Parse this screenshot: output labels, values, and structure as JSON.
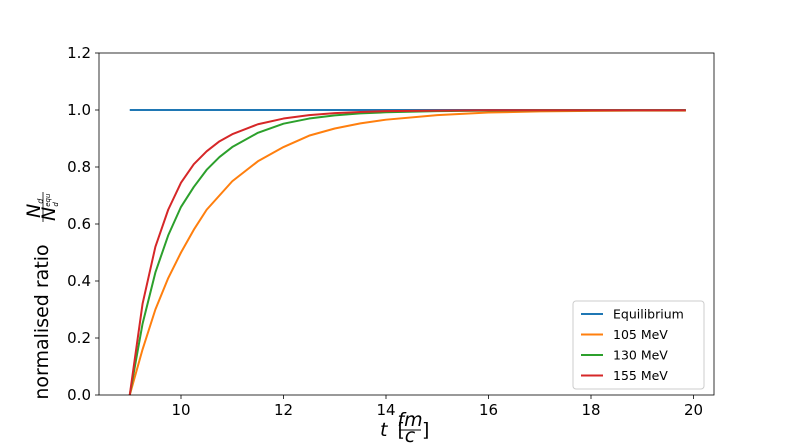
{
  "chart_data": {
    "type": "line",
    "title": "",
    "xlabel": {
      "var": "t",
      "open": "[",
      "num": "fm",
      "den": "c",
      "close": "]"
    },
    "ylabel": {
      "text": "normalised ratio",
      "num_base": "N",
      "num_sub": "d",
      "den_base": "N",
      "den_sub": "d",
      "den_sup": "equ"
    },
    "xlim": [
      8.4,
      20.4
    ],
    "ylim": [
      0.0,
      1.2
    ],
    "xticks": [
      10,
      12,
      14,
      16,
      18,
      20
    ],
    "yticks": [
      0.0,
      0.2,
      0.4,
      0.6,
      0.8,
      1.0,
      1.2
    ],
    "xtick_labels": [
      "10",
      "12",
      "14",
      "16",
      "18",
      "20"
    ],
    "ytick_labels": [
      "0.0",
      "0.2",
      "0.4",
      "0.6",
      "0.8",
      "1.0",
      "1.2"
    ],
    "grid": false,
    "legend_position": "bottom-right",
    "series": [
      {
        "name": "Equilibrium",
        "color": "#1f77b4",
        "x": [
          9.0,
          19.85
        ],
        "y": [
          1.0,
          1.0
        ]
      },
      {
        "name": "105 MeV",
        "color": "#ff7f0e",
        "x": [
          9.0,
          9.25,
          9.5,
          9.75,
          10.0,
          10.25,
          10.5,
          10.75,
          11.0,
          11.5,
          12.0,
          12.5,
          13.0,
          13.5,
          14.0,
          15.0,
          16.0,
          17.0,
          18.0,
          19.0,
          19.85
        ],
        "y": [
          0.0,
          0.16,
          0.3,
          0.41,
          0.5,
          0.58,
          0.65,
          0.7,
          0.75,
          0.82,
          0.87,
          0.91,
          0.935,
          0.953,
          0.966,
          0.982,
          0.991,
          0.995,
          0.997,
          0.998,
          0.998
        ]
      },
      {
        "name": "130 MeV",
        "color": "#2ca02c",
        "x": [
          9.0,
          9.25,
          9.5,
          9.75,
          10.0,
          10.25,
          10.5,
          10.75,
          11.0,
          11.5,
          12.0,
          12.5,
          13.0,
          13.5,
          14.0,
          15.0,
          16.0,
          17.0,
          18.0,
          19.0,
          19.85
        ],
        "y": [
          0.0,
          0.25,
          0.43,
          0.56,
          0.66,
          0.73,
          0.79,
          0.835,
          0.87,
          0.92,
          0.952,
          0.97,
          0.981,
          0.988,
          0.992,
          0.996,
          0.998,
          0.999,
          0.999,
          0.999,
          0.999
        ]
      },
      {
        "name": "155 MeV",
        "color": "#d62728",
        "x": [
          9.0,
          9.25,
          9.5,
          9.75,
          10.0,
          10.25,
          10.5,
          10.75,
          11.0,
          11.5,
          12.0,
          12.5,
          13.0,
          13.5,
          14.0,
          15.0,
          16.0,
          17.0,
          18.0,
          19.0,
          19.85
        ],
        "y": [
          0.0,
          0.32,
          0.52,
          0.65,
          0.745,
          0.81,
          0.855,
          0.89,
          0.915,
          0.95,
          0.97,
          0.982,
          0.989,
          0.993,
          0.996,
          0.998,
          0.999,
          0.999,
          0.999,
          0.999,
          0.999
        ]
      }
    ]
  }
}
